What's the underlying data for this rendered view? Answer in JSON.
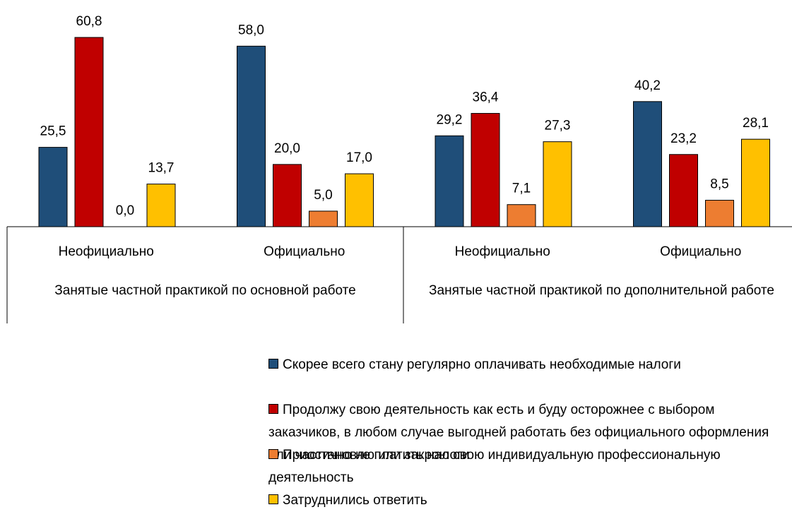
{
  "chart_data": {
    "type": "bar",
    "categories": [
      "Неофициально",
      "Официально",
      "Неофициально",
      "Официально"
    ],
    "groups": [
      {
        "label": "Занятые частной практикой по основной работе",
        "span": 2
      },
      {
        "label": "Занятые частной практикой по дополнительной работе",
        "span": 2
      }
    ],
    "series": [
      {
        "name": "Скорее всего стану регулярно оплачивать необходимые налоги",
        "color": "#1f4e79",
        "values": [
          25.5,
          58.0,
          29.2,
          40.2
        ],
        "value_labels": [
          "25,5",
          "58,0",
          "29,2",
          "40,2"
        ]
      },
      {
        "name": "Продолжу свою деятельность как есть и буду осторожнее с выбором заказчиков, в любом случае выгодней работать без официального оформления или частично не платить налоги",
        "color": "#c00000",
        "values": [
          60.8,
          20.0,
          36.4,
          23.2
        ],
        "value_labels": [
          "60,8",
          "20,0",
          "36,4",
          "23,2"
        ]
      },
      {
        "name": "Приостановлю или закрою свою индивидуальную профессиональную деятельность",
        "color": "#ed7d31",
        "values": [
          0.0,
          5.0,
          7.1,
          8.5
        ],
        "value_labels": [
          "0,0",
          "5,0",
          "7,1",
          "8,5"
        ]
      },
      {
        "name": "Затруднились ответить",
        "color": "#ffc000",
        "values": [
          13.7,
          17.0,
          27.3,
          28.1
        ],
        "value_labels": [
          "13,7",
          "17,0",
          "27,3",
          "28,1"
        ]
      }
    ],
    "legend": "bottom"
  }
}
